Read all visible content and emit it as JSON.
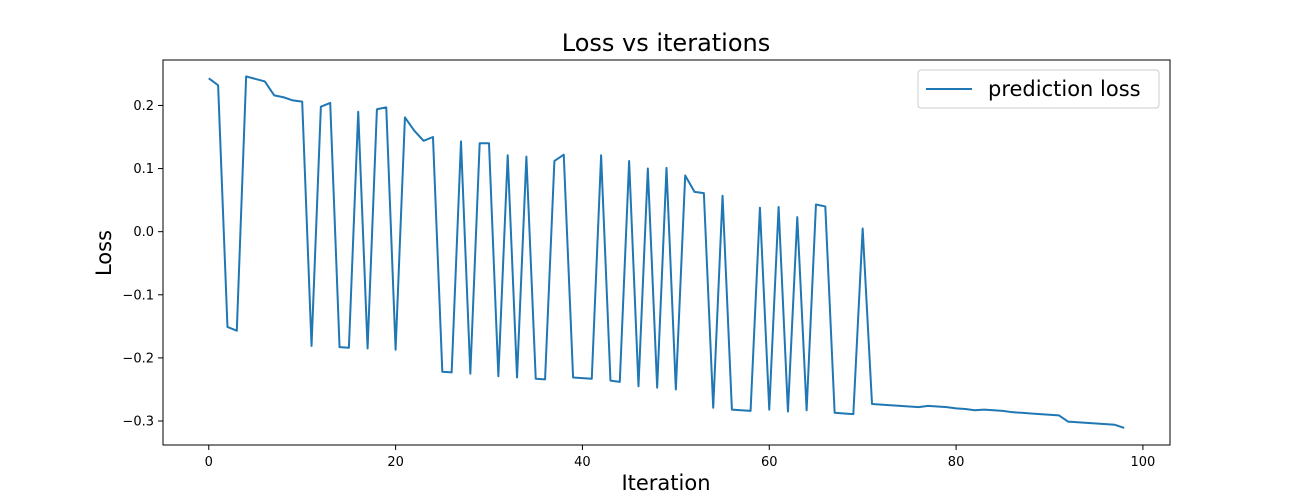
{
  "chart_data": {
    "type": "line",
    "title": "Loss vs iterations",
    "xlabel": "Iteration",
    "ylabel": "Loss",
    "xlim": [
      -4.9,
      102.9
    ],
    "ylim": [
      -0.338,
      0.272
    ],
    "xticks": [
      0,
      20,
      40,
      60,
      80,
      100
    ],
    "yticks": [
      -0.3,
      -0.2,
      -0.1,
      0.0,
      0.1,
      0.2
    ],
    "ytick_labels": [
      "−0.3",
      "−0.2",
      "−0.1",
      "0.0",
      "0.1",
      "0.2"
    ],
    "grid": false,
    "legend_position": "top-right",
    "series": [
      {
        "name": "prediction loss",
        "color": "#1f77b4",
        "x": [
          0,
          1,
          2,
          3,
          4,
          5,
          6,
          7,
          8,
          9,
          10,
          11,
          12,
          13,
          14,
          15,
          16,
          17,
          18,
          19,
          20,
          21,
          22,
          23,
          24,
          25,
          26,
          27,
          28,
          29,
          30,
          31,
          32,
          33,
          34,
          35,
          36,
          37,
          38,
          39,
          40,
          41,
          42,
          43,
          44,
          45,
          46,
          47,
          48,
          49,
          50,
          51,
          52,
          53,
          54,
          55,
          56,
          57,
          58,
          59,
          60,
          61,
          62,
          63,
          64,
          65,
          66,
          67,
          68,
          69,
          70,
          71,
          72,
          73,
          74,
          75,
          76,
          77,
          78,
          79,
          80,
          81,
          82,
          83,
          84,
          85,
          86,
          87,
          88,
          89,
          90,
          91,
          92,
          93,
          94,
          95,
          96,
          97,
          98
        ],
        "y": [
          0.243,
          0.232,
          -0.151,
          -0.157,
          0.246,
          0.242,
          0.238,
          0.216,
          0.213,
          0.208,
          0.206,
          -0.181,
          0.198,
          0.204,
          -0.183,
          -0.184,
          0.19,
          -0.185,
          0.194,
          0.197,
          -0.187,
          0.181,
          0.16,
          0.144,
          0.15,
          -0.222,
          -0.223,
          0.143,
          -0.225,
          0.14,
          0.14,
          -0.229,
          0.121,
          -0.231,
          0.119,
          -0.233,
          -0.234,
          0.112,
          0.122,
          -0.231,
          -0.232,
          -0.233,
          0.121,
          -0.236,
          -0.238,
          0.112,
          -0.245,
          0.1,
          -0.247,
          0.101,
          -0.25,
          0.089,
          0.063,
          0.061,
          -0.279,
          0.057,
          -0.282,
          -0.283,
          -0.284,
          0.038,
          -0.282,
          0.039,
          -0.285,
          0.023,
          -0.283,
          0.043,
          0.04,
          -0.287,
          -0.288,
          -0.289,
          0.005,
          -0.273,
          -0.274,
          -0.275,
          -0.276,
          -0.277,
          -0.278,
          -0.276,
          -0.277,
          -0.278,
          -0.28,
          -0.281,
          -0.283,
          -0.282,
          -0.283,
          -0.284,
          -0.286,
          -0.287,
          -0.288,
          -0.289,
          -0.29,
          -0.291,
          -0.301,
          -0.302,
          -0.303,
          -0.304,
          -0.305,
          -0.306,
          -0.311
        ]
      }
    ]
  }
}
